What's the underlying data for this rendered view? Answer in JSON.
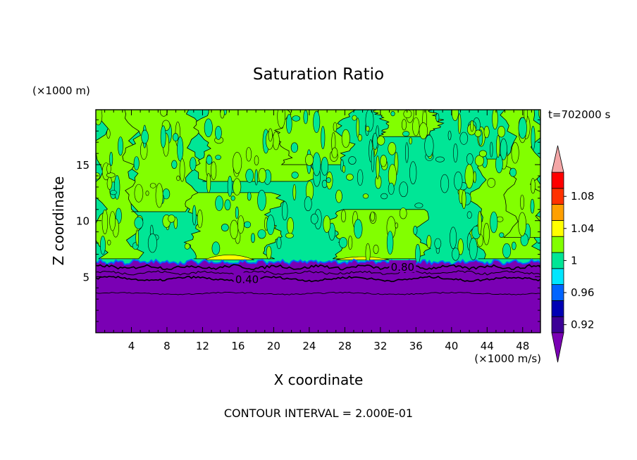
{
  "chart_data": {
    "type": "heatmap",
    "title": "Saturation Ratio",
    "xlabel": "X coordinate",
    "ylabel": "Z coordinate",
    "x_unit": "(×1000 m/s)",
    "y_unit": "(×1000 m)",
    "time_label": "t=702000 s",
    "footer": "CONTOUR INTERVAL = 2.000E-01",
    "xlim": [
      0,
      50
    ],
    "ylim": [
      0,
      19.9
    ],
    "x_ticks": [
      4,
      8,
      12,
      16,
      20,
      24,
      28,
      32,
      36,
      40,
      44,
      48
    ],
    "y_ticks": [
      5,
      10,
      15
    ],
    "contour_labels": [
      {
        "text": "0.40",
        "x": 17.0,
        "y": 4.8
      },
      {
        "text": "0.80",
        "x": 34.5,
        "y": 5.9
      }
    ],
    "colorbar": {
      "levels": [
        0.92,
        0.94,
        0.96,
        0.98,
        1.0,
        1.02,
        1.04,
        1.06,
        1.08,
        1.1
      ],
      "tick_labels": [
        "0.92",
        "0.96",
        "1",
        "1.04",
        "1.08"
      ],
      "colors": [
        "#3c0096",
        "#0000b4",
        "#0064ff",
        "#00e6ff",
        "#00e696",
        "#82ff00",
        "#ffff00",
        "#ffa000",
        "#ff3200",
        "#ff0000"
      ],
      "below_color": "#7a00b4",
      "above_color": "#f4a6a6"
    },
    "regions": {
      "lower_layer_top_z": 6.3,
      "lower_layer_color": "#7a00b4",
      "upper_base_color": "#00e696",
      "supersaturated_color": "#82ff00",
      "peak_color": "#ffff00"
    }
  }
}
